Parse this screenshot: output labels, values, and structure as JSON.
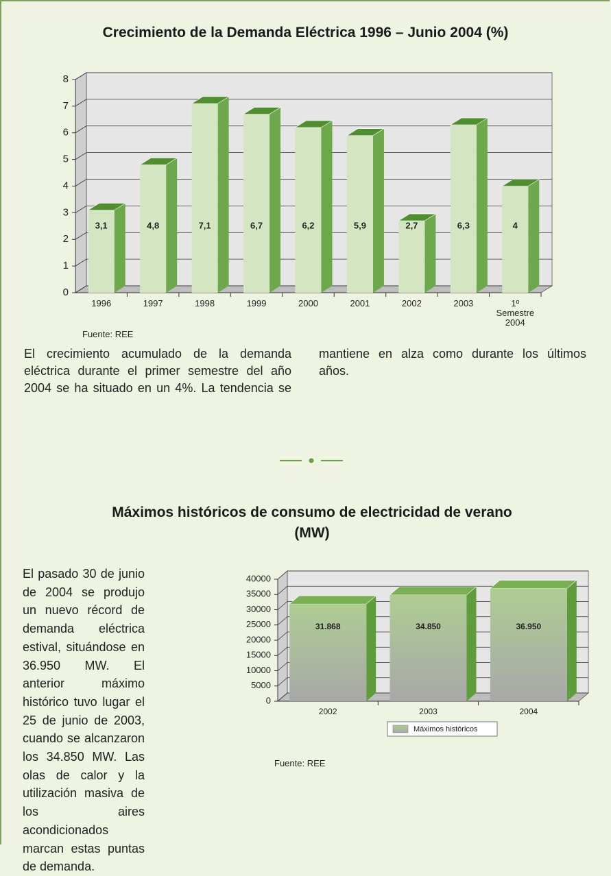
{
  "chart_data": [
    {
      "type": "bar3d",
      "title": "Crecimiento de la Demanda Eléctrica 1996 – Junio 2004 (%)",
      "categories": [
        "1996",
        "1997",
        "1998",
        "1999",
        "2000",
        "2001",
        "2002",
        "2003",
        "1º Semestre 2004"
      ],
      "values": [
        3.1,
        4.8,
        7.1,
        6.7,
        6.2,
        5.9,
        2.7,
        6.3,
        4
      ],
      "value_labels": [
        "3,1",
        "4,8",
        "7,1",
        "6,7",
        "6,2",
        "5,9",
        "2,7",
        "6,3",
        "4"
      ],
      "color": "#d3e6c1",
      "ylim": [
        0,
        8
      ],
      "yticks": [
        0,
        1,
        2,
        3,
        4,
        5,
        6,
        7,
        8
      ],
      "grid": true,
      "source": "Fuente: REE"
    },
    {
      "type": "bar3d",
      "title": "Máximos históricos de consumo de electricidad de verano (MW)",
      "categories": [
        "2002",
        "2003",
        "2004"
      ],
      "series": [
        {
          "name": "Máximos históricos",
          "color": "#aac98f",
          "values": [
            31868,
            34850,
            36950
          ],
          "value_labels": [
            "31.868",
            "34.850",
            "36.950"
          ]
        }
      ],
      "ylim": [
        0,
        40000
      ],
      "yticks": [
        0,
        5000,
        10000,
        15000,
        20000,
        25000,
        30000,
        35000,
        40000
      ],
      "grid": true,
      "legend": "bottom",
      "source": "Fuente: REE"
    }
  ],
  "paragraphs": [
    "El crecimiento acumulado de la demanda eléctrica durante el primer semestre del año 2004 se ha situado en un 4%. La tendencia se mantiene en alza como durante los últimos años.",
    "El pasado 30 de junio de 2004 se produjo un nuevo récord de demanda eléctrica estival, situándose en 36.950 MW. El anterior máximo histórico tuvo lugar el 25 de junio de 2003, cuando se alcanzaron los 34.850 MW. Las olas de calor y la utilización masiva de los aires acondicionados marcan estas puntas de demanda."
  ]
}
